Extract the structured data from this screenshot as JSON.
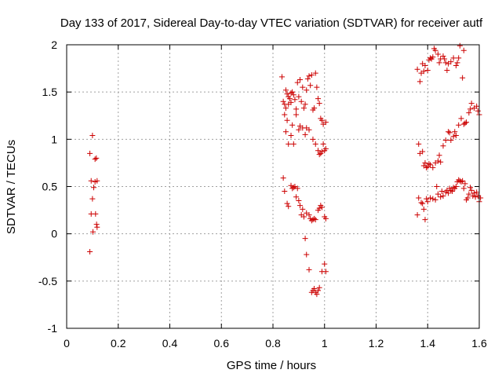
{
  "chart_data": {
    "type": "scatter",
    "title": "Day 133 of 2017, Sidereal Day-to-day VTEC variation (SDTVAR) for receiver autf",
    "xlabel": "GPS time / hours",
    "ylabel": "SDTVAR / TECUs",
    "xlim": [
      0,
      1.6
    ],
    "ylim": [
      -1,
      2
    ],
    "xticks": [
      0,
      0.2,
      0.4,
      0.6,
      0.8,
      1,
      1.2,
      1.4,
      1.6
    ],
    "xtick_labels": [
      "0",
      "0.2",
      "0.4",
      "0.6",
      "0.8",
      "1",
      "1.2",
      "1.4",
      "1.6"
    ],
    "yticks": [
      -1,
      -0.5,
      0,
      0.5,
      1,
      1.5,
      2
    ],
    "ytick_labels": [
      "-1",
      "-0.5",
      "0",
      "0.5",
      "1",
      "1.5",
      "2"
    ],
    "grid": true,
    "marker": "+",
    "color": "#cc0000",
    "series": [
      {
        "name": "SDTVAR",
        "points": [
          [
            0.09,
            0.85
          ],
          [
            0.1,
            1.04
          ],
          [
            0.11,
            0.79
          ],
          [
            0.115,
            0.8
          ],
          [
            0.095,
            0.56
          ],
          [
            0.105,
            0.49
          ],
          [
            0.11,
            0.55
          ],
          [
            0.118,
            0.56
          ],
          [
            0.1,
            0.37
          ],
          [
            0.095,
            0.21
          ],
          [
            0.112,
            0.21
          ],
          [
            0.118,
            0.07
          ],
          [
            0.116,
            0.1
          ],
          [
            0.102,
            0.02
          ],
          [
            0.09,
            -0.19
          ],
          [
            0.835,
            1.66
          ],
          [
            0.84,
            1.4
          ],
          [
            0.845,
            1.37
          ],
          [
            0.85,
            1.33
          ],
          [
            0.85,
            1.52
          ],
          [
            0.855,
            1.48
          ],
          [
            0.86,
            1.37
          ],
          [
            0.86,
            1.45
          ],
          [
            0.865,
            1.43
          ],
          [
            0.87,
            1.39
          ],
          [
            0.87,
            1.49
          ],
          [
            0.875,
            1.5
          ],
          [
            0.88,
            1.47
          ],
          [
            0.885,
            1.42
          ],
          [
            0.89,
            1.32
          ],
          [
            0.895,
            1.6
          ],
          [
            0.9,
            1.45
          ],
          [
            0.905,
            1.63
          ],
          [
            0.91,
            1.4
          ],
          [
            0.915,
            1.55
          ],
          [
            0.92,
            1.33
          ],
          [
            0.925,
            1.37
          ],
          [
            0.93,
            1.52
          ],
          [
            0.935,
            1.64
          ],
          [
            0.94,
            1.67
          ],
          [
            0.945,
            1.57
          ],
          [
            0.95,
            1.68
          ],
          [
            0.955,
            1.31
          ],
          [
            0.96,
            1.33
          ],
          [
            0.965,
            1.7
          ],
          [
            0.97,
            1.55
          ],
          [
            0.975,
            1.43
          ],
          [
            0.98,
            1.38
          ],
          [
            0.985,
            1.22
          ],
          [
            0.99,
            1.2
          ],
          [
            0.995,
            1.16
          ],
          [
            1.005,
            1.18
          ],
          [
            0.845,
            1.26
          ],
          [
            0.85,
            1.08
          ],
          [
            0.855,
            1.2
          ],
          [
            0.86,
            0.95
          ],
          [
            0.87,
            1.04
          ],
          [
            0.875,
            1.15
          ],
          [
            0.88,
            0.95
          ],
          [
            0.89,
            1.26
          ],
          [
            0.9,
            1.1
          ],
          [
            0.905,
            1.14
          ],
          [
            0.915,
            1.12
          ],
          [
            0.925,
            1.05
          ],
          [
            0.93,
            1.12
          ],
          [
            0.94,
            1.1
          ],
          [
            0.955,
            1.0
          ],
          [
            0.965,
            0.95
          ],
          [
            0.975,
            0.88
          ],
          [
            0.98,
            0.84
          ],
          [
            0.985,
            0.85
          ],
          [
            0.99,
            0.87
          ],
          [
            0.995,
            0.95
          ],
          [
            1.0,
            0.88
          ],
          [
            1.005,
            0.9
          ],
          [
            0.84,
            0.59
          ],
          [
            0.845,
            0.45
          ],
          [
            0.855,
            0.32
          ],
          [
            0.86,
            0.29
          ],
          [
            0.87,
            0.51
          ],
          [
            0.875,
            0.48
          ],
          [
            0.88,
            0.49
          ],
          [
            0.885,
            0.5
          ],
          [
            0.89,
            0.39
          ],
          [
            0.895,
            0.48
          ],
          [
            0.9,
            0.35
          ],
          [
            0.905,
            0.3
          ],
          [
            0.91,
            0.2
          ],
          [
            0.915,
            0.26
          ],
          [
            0.92,
            0.18
          ],
          [
            0.93,
            0.22
          ],
          [
            0.94,
            0.2
          ],
          [
            0.945,
            0.16
          ],
          [
            0.95,
            0.14
          ],
          [
            0.955,
            0.15
          ],
          [
            0.96,
            0.16
          ],
          [
            0.965,
            0.15
          ],
          [
            0.975,
            0.25
          ],
          [
            0.98,
            0.27
          ],
          [
            0.985,
            0.3
          ],
          [
            0.99,
            0.28
          ],
          [
            1.0,
            0.18
          ],
          [
            1.005,
            0.16
          ],
          [
            0.925,
            -0.05
          ],
          [
            0.93,
            -0.22
          ],
          [
            0.94,
            -0.38
          ],
          [
            0.95,
            -0.62
          ],
          [
            0.955,
            -0.6
          ],
          [
            0.96,
            -0.58
          ],
          [
            0.965,
            -0.62
          ],
          [
            0.97,
            -0.64
          ],
          [
            0.975,
            -0.6
          ],
          [
            0.98,
            -0.57
          ],
          [
            0.99,
            -0.4
          ],
          [
            1.0,
            -0.32
          ],
          [
            1.005,
            -0.4
          ],
          [
            1.36,
            1.74
          ],
          [
            1.37,
            1.61
          ],
          [
            1.375,
            1.7
          ],
          [
            1.38,
            1.8
          ],
          [
            1.385,
            1.72
          ],
          [
            1.39,
            1.78
          ],
          [
            1.4,
            1.73
          ],
          [
            1.405,
            1.84
          ],
          [
            1.41,
            1.86
          ],
          [
            1.415,
            1.85
          ],
          [
            1.42,
            1.87
          ],
          [
            1.425,
            1.96
          ],
          [
            1.43,
            1.94
          ],
          [
            1.44,
            1.9
          ],
          [
            1.445,
            1.81
          ],
          [
            1.45,
            1.85
          ],
          [
            1.46,
            1.88
          ],
          [
            1.465,
            1.85
          ],
          [
            1.47,
            1.81
          ],
          [
            1.475,
            1.73
          ],
          [
            1.48,
            1.8
          ],
          [
            1.49,
            1.82
          ],
          [
            1.5,
            1.86
          ],
          [
            1.51,
            1.78
          ],
          [
            1.515,
            1.81
          ],
          [
            1.52,
            1.86
          ],
          [
            1.525,
            1.99
          ],
          [
            1.535,
            1.65
          ],
          [
            1.54,
            1.94
          ],
          [
            1.365,
            0.95
          ],
          [
            1.37,
            0.85
          ],
          [
            1.38,
            0.87
          ],
          [
            1.385,
            0.72
          ],
          [
            1.39,
            0.75
          ],
          [
            1.395,
            0.7
          ],
          [
            1.4,
            0.71
          ],
          [
            1.405,
            0.74
          ],
          [
            1.41,
            0.73
          ],
          [
            1.42,
            0.7
          ],
          [
            1.43,
            0.75
          ],
          [
            1.44,
            0.77
          ],
          [
            1.445,
            0.83
          ],
          [
            1.45,
            0.76
          ],
          [
            1.46,
            0.93
          ],
          [
            1.47,
            0.99
          ],
          [
            1.48,
            1.08
          ],
          [
            1.485,
            1.07
          ],
          [
            1.49,
            0.99
          ],
          [
            1.5,
            1.03
          ],
          [
            1.505,
            1.08
          ],
          [
            1.51,
            1.04
          ],
          [
            1.52,
            1.15
          ],
          [
            1.53,
            1.22
          ],
          [
            1.54,
            1.16
          ],
          [
            1.545,
            1.17
          ],
          [
            1.55,
            1.18
          ],
          [
            1.56,
            1.28
          ],
          [
            1.565,
            1.32
          ],
          [
            1.57,
            1.38
          ],
          [
            1.58,
            1.33
          ],
          [
            1.59,
            1.35
          ],
          [
            1.595,
            1.3
          ],
          [
            1.6,
            1.26
          ],
          [
            1.36,
            0.2
          ],
          [
            1.365,
            0.38
          ],
          [
            1.375,
            0.33
          ],
          [
            1.38,
            0.32
          ],
          [
            1.385,
            0.26
          ],
          [
            1.39,
            0.15
          ],
          [
            1.395,
            0.37
          ],
          [
            1.4,
            0.34
          ],
          [
            1.41,
            0.38
          ],
          [
            1.42,
            0.37
          ],
          [
            1.43,
            0.36
          ],
          [
            1.435,
            0.5
          ],
          [
            1.44,
            0.42
          ],
          [
            1.45,
            0.39
          ],
          [
            1.455,
            0.45
          ],
          [
            1.46,
            0.4
          ],
          [
            1.47,
            0.44
          ],
          [
            1.475,
            0.46
          ],
          [
            1.48,
            0.43
          ],
          [
            1.485,
            0.48
          ],
          [
            1.49,
            0.46
          ],
          [
            1.495,
            0.45
          ],
          [
            1.5,
            0.49
          ],
          [
            1.505,
            0.48
          ],
          [
            1.51,
            0.5
          ],
          [
            1.515,
            0.55
          ],
          [
            1.52,
            0.57
          ],
          [
            1.525,
            0.56
          ],
          [
            1.53,
            0.55
          ],
          [
            1.535,
            0.56
          ],
          [
            1.54,
            0.48
          ],
          [
            1.545,
            0.53
          ],
          [
            1.55,
            0.36
          ],
          [
            1.555,
            0.38
          ],
          [
            1.56,
            0.42
          ],
          [
            1.565,
            0.49
          ],
          [
            1.57,
            0.46
          ],
          [
            1.575,
            0.4
          ],
          [
            1.58,
            0.43
          ],
          [
            1.585,
            0.39
          ],
          [
            1.59,
            0.44
          ],
          [
            1.595,
            0.4
          ],
          [
            1.6,
            0.34
          ],
          [
            1.605,
            0.38
          ]
        ]
      }
    ]
  }
}
